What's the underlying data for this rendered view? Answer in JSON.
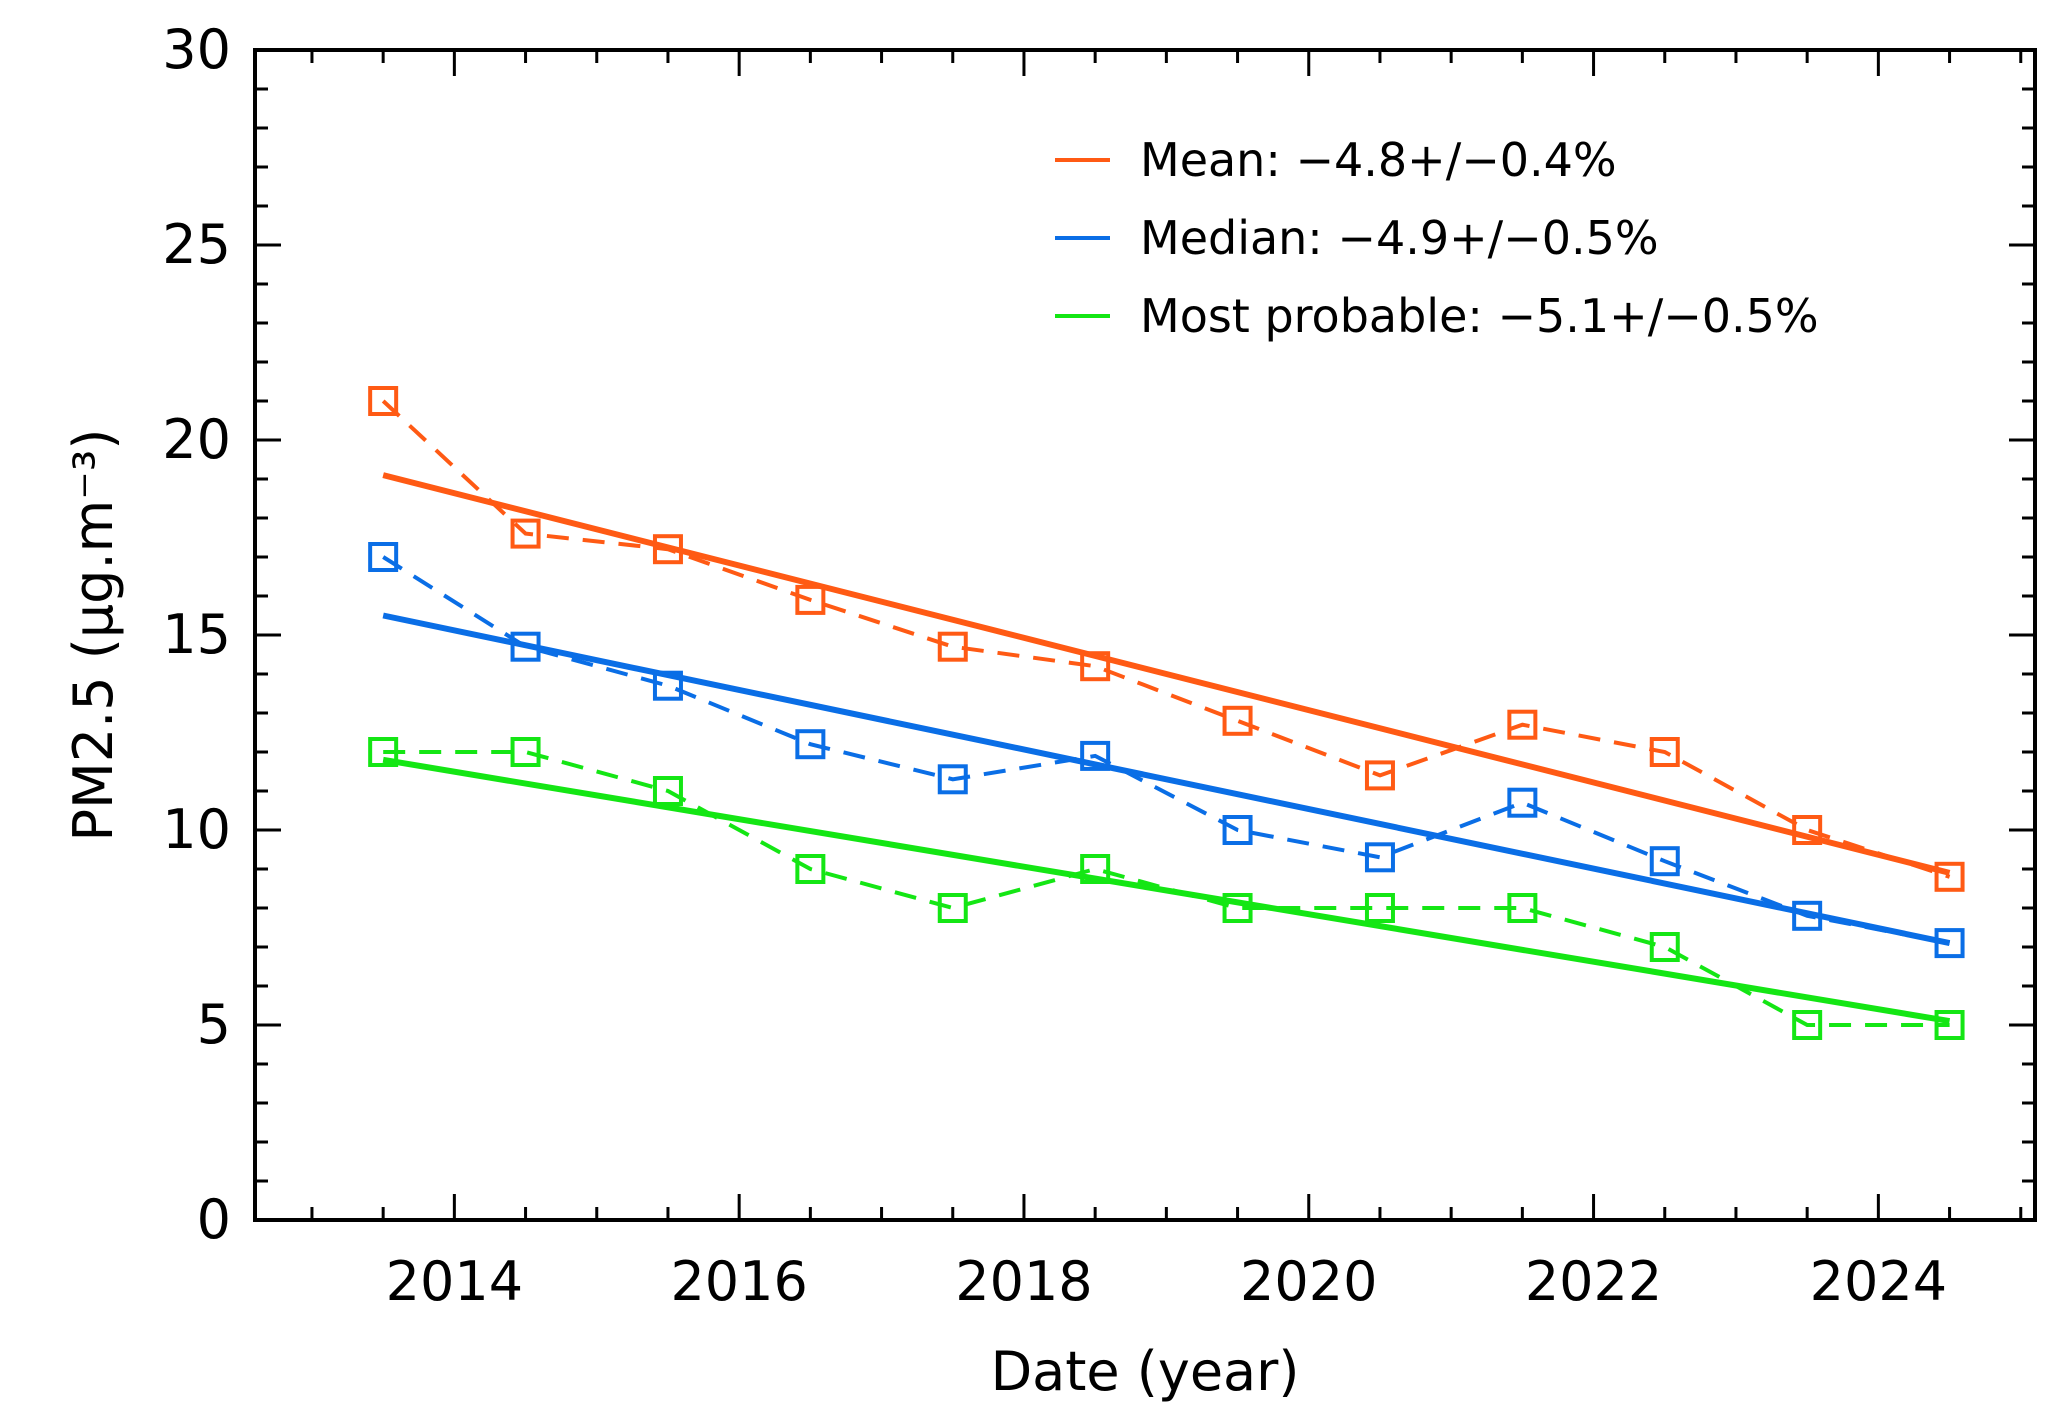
{
  "chart_data": {
    "type": "line",
    "xlabel": "Date (year)",
    "ylabel": "PM2.5 (μg.m⁻³)",
    "xlim": [
      2012.6,
      2025.1
    ],
    "ylim": [
      0,
      30
    ],
    "x_ticks": [
      2014,
      2016,
      2018,
      2020,
      2022,
      2024
    ],
    "y_ticks": [
      0,
      5,
      10,
      15,
      20,
      25,
      30
    ],
    "legend_position": "top-right",
    "grid": false,
    "x": [
      2013.5,
      2014.5,
      2015.5,
      2016.5,
      2017.5,
      2018.5,
      2019.5,
      2020.5,
      2021.5,
      2022.5,
      2023.5,
      2024.5
    ],
    "series": [
      {
        "name": "Mean: −4.8+/−0.4%",
        "color": "#ff5a14",
        "values": [
          21.0,
          17.6,
          17.2,
          15.9,
          14.7,
          14.2,
          12.8,
          11.4,
          12.7,
          12.0,
          10.0,
          8.8
        ],
        "trend": [
          19.1,
          8.9
        ]
      },
      {
        "name": "Median: −4.9+/−0.5%",
        "color": "#0a6ee6",
        "values": [
          17.0,
          14.7,
          13.7,
          12.2,
          11.3,
          11.9,
          10.0,
          9.3,
          10.7,
          9.2,
          7.8,
          7.1
        ],
        "trend": [
          15.5,
          7.1
        ]
      },
      {
        "name": "Most probable: −5.1+/−0.5%",
        "color": "#14e614",
        "values": [
          12.0,
          12.0,
          11.0,
          9.0,
          8.0,
          9.0,
          8.0,
          8.0,
          8.0,
          7.0,
          5.0,
          5.0
        ],
        "trend": [
          11.8,
          5.1
        ]
      }
    ]
  }
}
